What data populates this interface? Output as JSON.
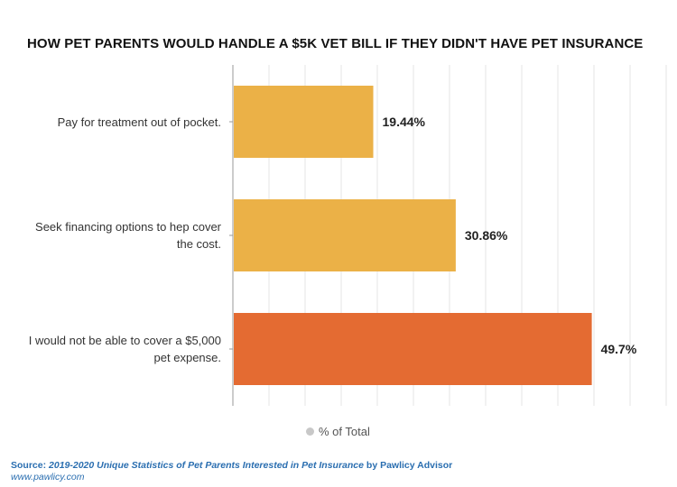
{
  "chart_data": {
    "type": "bar",
    "orientation": "horizontal",
    "title": "HOW PET PARENTS WOULD HANDLE A $5K VET BILL IF THEY DIDN'T HAVE PET INSURANCE",
    "categories": [
      "Pay for treatment out of pocket.",
      "Seek financing options to hep cover\nthe cost.",
      "I would not be able to cover a $5,000\npet expense."
    ],
    "series": [
      {
        "name": "% of Total",
        "values": [
          19.44,
          30.86,
          49.7
        ]
      }
    ],
    "data_labels": [
      "19.44%",
      "30.86%",
      "49.7%"
    ],
    "bar_colors": [
      "#ebb147",
      "#ebb147",
      "#e46b32"
    ],
    "xlim": [
      0,
      60
    ],
    "grid": true,
    "xlabel": "",
    "ylabel": "",
    "legend": {
      "label": "% of Total",
      "position": "bottom",
      "color": "#c8c8c8"
    }
  },
  "footer": {
    "source_prefix": "Source: ",
    "source_title": "2019-2020 Unique Statistics of Pet Parents Interested in Pet Insurance",
    "source_suffix": " by Pawlicy Advisor",
    "url": "www.pawlicy.com"
  }
}
